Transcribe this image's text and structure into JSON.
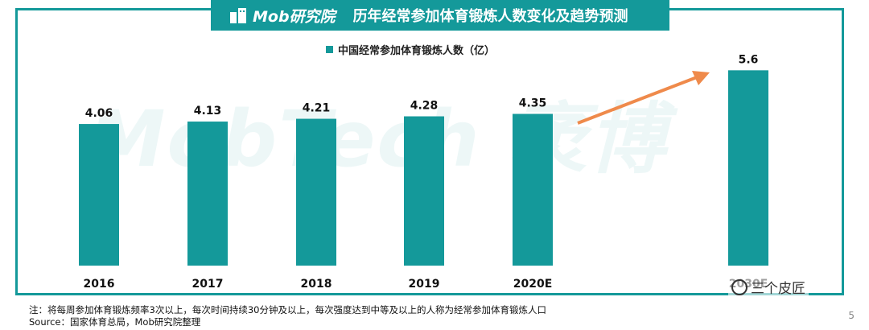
{
  "header": {
    "logo_text": "Mob研究院",
    "title": "历年经常参加体育锻炼人数变化及趋势预测"
  },
  "watermark": "MobTech 袤博",
  "colors": {
    "accent": "#14999a",
    "arrow": "#ef8a4b"
  },
  "chart_data": {
    "type": "bar",
    "categories": [
      "2016",
      "2017",
      "2018",
      "2019",
      "2020E",
      "2030E"
    ],
    "series": [
      {
        "name": "中国经常参加体育锻炼人数（亿）",
        "values": [
          4.06,
          4.13,
          4.21,
          4.28,
          4.35,
          5.6
        ]
      }
    ],
    "value_labels": [
      "4.06",
      "4.13",
      "4.21",
      "4.28",
      "4.35",
      "5.6"
    ],
    "legend": "top-center",
    "grid": false,
    "ylim": [
      0,
      6
    ]
  },
  "notes": {
    "line1": "注：将每周参加体育锻炼频率3次以上，每次时间持续30分钟及以上，每次强度达到中等及以上的人称为经常参加体育锻炼人口",
    "line2": "Source：国家体育总局，Mob研究院整理"
  },
  "page_number": "5",
  "credit": "三个皮匠"
}
